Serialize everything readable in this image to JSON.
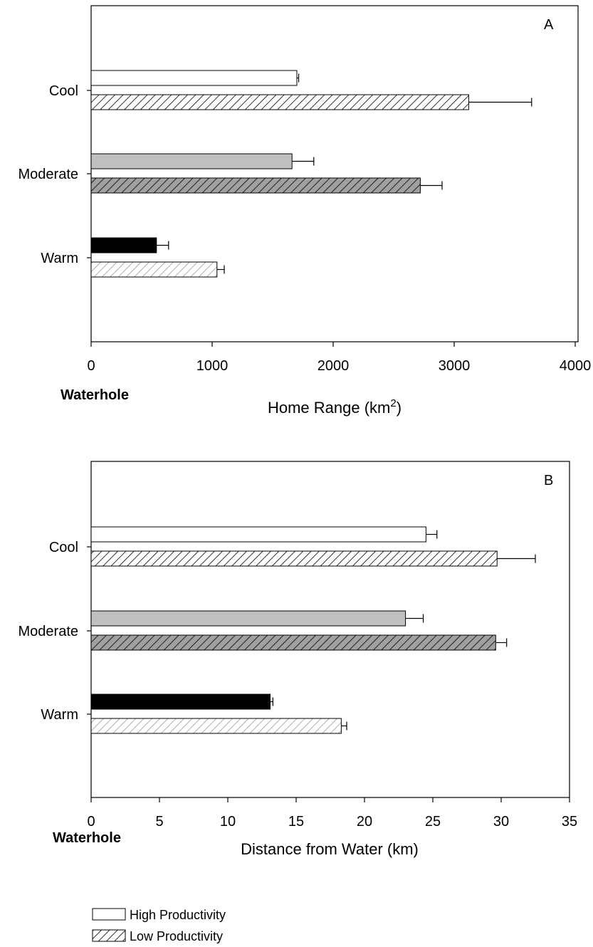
{
  "chart_data": [
    {
      "type": "bar",
      "orientation": "horizontal",
      "panel_label": "A",
      "categories": [
        "Cool",
        "Moderate",
        "Warm"
      ],
      "xlabel": "Home Range (km",
      "xlabel_sup": "2",
      "xlabel_close": ")",
      "corner_label": "Waterhole",
      "xlim": [
        0,
        4000
      ],
      "xticks": [
        "0",
        "1000",
        "2000",
        "3000",
        "4000"
      ],
      "series": [
        {
          "name": "High Productivity",
          "values": [
            1700,
            1660,
            540
          ],
          "errors": [
            15,
            180,
            100
          ]
        },
        {
          "name": "Low Productivity",
          "values": [
            3120,
            2720,
            1040
          ],
          "errors": [
            520,
            180,
            60
          ]
        }
      ],
      "grid": false
    },
    {
      "type": "bar",
      "orientation": "horizontal",
      "panel_label": "B",
      "categories": [
        "Cool",
        "Moderate",
        "Warm"
      ],
      "xlabel": "Distance from Water (km)",
      "corner_label": "Waterhole",
      "xlim": [
        0,
        35
      ],
      "xticks": [
        "0",
        "5",
        "10",
        "15",
        "20",
        "25",
        "30",
        "35"
      ],
      "series": [
        {
          "name": "High Productivity",
          "values": [
            24.5,
            23.0,
            13.1
          ],
          "errors": [
            0.8,
            1.3,
            0.2
          ]
        },
        {
          "name": "Low Productivity",
          "values": [
            29.7,
            29.6,
            18.3
          ],
          "errors": [
            2.8,
            0.8,
            0.4
          ]
        }
      ],
      "grid": false
    }
  ],
  "category_fill": {
    "Cool": "#ffffff",
    "Moderate": "#c0c0c0",
    "Warm": "#000000"
  },
  "hatch_stroke": {
    "Cool": "#000000",
    "Moderate": "#000000",
    "Warm": "#9a9a9a"
  },
  "hatch_bg": {
    "Cool": "#ffffff",
    "Moderate": "#a0a0a0",
    "Warm": "#ffffff"
  },
  "legend": [
    {
      "label": "High Productivity",
      "style": "solid-white"
    },
    {
      "label": "Low Productivity",
      "style": "hatched"
    }
  ]
}
